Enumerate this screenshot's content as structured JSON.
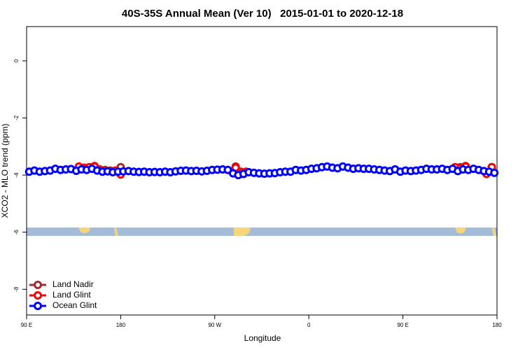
{
  "chart_data": {
    "type": "line",
    "title": "40S-35S Annual Mean (Ver 10)   2015-01-01 to 2020-12-18",
    "x_label": "Longitude",
    "y_label": "XCO2 - MLO trend (ppm)",
    "xlim": [
      90,
      540
    ],
    "ylim": [
      -8.9,
      1.2
    ],
    "xticks": [
      {
        "value": 90,
        "label": "90 E"
      },
      {
        "value": 180,
        "label": "180"
      },
      {
        "value": 270,
        "label": "90 W"
      },
      {
        "value": 360,
        "label": "0"
      },
      {
        "value": 450,
        "label": "90 E"
      },
      {
        "value": 540,
        "label": "180"
      }
    ],
    "yticks": [
      0,
      -2,
      -4,
      -6,
      -8
    ],
    "legend": "bottom-left",
    "series": [
      {
        "name": "Land Nadir",
        "color": "#a52a2a",
        "x": [
          140,
          145,
          150,
          155,
          160,
          165,
          170,
          175,
          180,
          185,
          290,
          295,
          300,
          305,
          500,
          505,
          510,
          530,
          535
        ],
        "values": [
          -3.72,
          -3.74,
          -3.76,
          -3.68,
          -3.8,
          -3.82,
          -3.84,
          -3.86,
          -3.72,
          null,
          -3.7,
          -3.88,
          -3.9,
          null,
          -3.74,
          -3.72,
          -3.68,
          null,
          -3.72
        ]
      },
      {
        "name": "Land Glint",
        "color": "#ff0000",
        "x": [
          140,
          145,
          150,
          155,
          175,
          180,
          185,
          290,
          295,
          300,
          305,
          500,
          505,
          510,
          515,
          530,
          535
        ],
        "values": [
          -3.7,
          -3.76,
          -3.72,
          -3.7,
          -3.84,
          -3.98,
          null,
          -3.74,
          -3.95,
          -3.88,
          null,
          -3.72,
          -3.76,
          -3.7,
          null,
          -3.96,
          -3.72
        ]
      },
      {
        "name": "Ocean Glint",
        "color": "#0000ff",
        "x": [
          92.5,
          97.5,
          102.5,
          107.5,
          112.5,
          117.5,
          122.5,
          127.5,
          132.5,
          137.5,
          142.5,
          147.5,
          152.5,
          157.5,
          162.5,
          167.5,
          172.5,
          177.5,
          182.5,
          187.5,
          192.5,
          197.5,
          202.5,
          207.5,
          212.5,
          217.5,
          222.5,
          227.5,
          232.5,
          237.5,
          242.5,
          247.5,
          252.5,
          257.5,
          262.5,
          267.5,
          272.5,
          277.5,
          282.5,
          287.5,
          292.5,
          297.5,
          302.5,
          307.5,
          312.5,
          317.5,
          322.5,
          327.5,
          332.5,
          337.5,
          342.5,
          347.5,
          352.5,
          357.5,
          362.5,
          367.5,
          372.5,
          377.5,
          382.5,
          387.5,
          392.5,
          397.5,
          402.5,
          407.5,
          412.5,
          417.5,
          422.5,
          427.5,
          432.5,
          437.5,
          442.5,
          447.5,
          452.5,
          457.5,
          462.5,
          467.5,
          472.5,
          477.5,
          482.5,
          487.5,
          492.5,
          497.5,
          502.5,
          507.5,
          512.5,
          517.5,
          522.5,
          527.5,
          532.5,
          537.5
        ],
        "values": [
          -3.88,
          -3.84,
          -3.88,
          -3.86,
          -3.84,
          -3.78,
          -3.82,
          -3.8,
          -3.79,
          -3.85,
          -3.8,
          -3.82,
          -3.78,
          -3.84,
          -3.88,
          -3.87,
          -3.9,
          -3.88,
          -3.87,
          -3.86,
          -3.88,
          -3.89,
          -3.88,
          -3.9,
          -3.89,
          -3.9,
          -3.88,
          -3.9,
          -3.87,
          -3.85,
          -3.84,
          -3.86,
          -3.85,
          -3.87,
          -3.85,
          -3.82,
          -3.81,
          -3.8,
          -3.82,
          -3.94,
          -4.0,
          -3.96,
          -3.9,
          -3.92,
          -3.94,
          -3.95,
          -3.94,
          -3.93,
          -3.9,
          -3.88,
          -3.88,
          -3.82,
          -3.84,
          -3.82,
          -3.78,
          -3.76,
          -3.72,
          -3.7,
          -3.74,
          -3.76,
          -3.7,
          -3.74,
          -3.78,
          -3.76,
          -3.78,
          -3.78,
          -3.8,
          -3.82,
          -3.84,
          -3.86,
          -3.8,
          -3.88,
          -3.84,
          -3.86,
          -3.84,
          -3.82,
          -3.78,
          -3.8,
          -3.8,
          -3.78,
          -3.82,
          -3.78,
          -3.86,
          -3.8,
          -3.82,
          -3.78,
          -3.82,
          -3.86,
          -3.88,
          -3.92
        ]
      }
    ]
  }
}
